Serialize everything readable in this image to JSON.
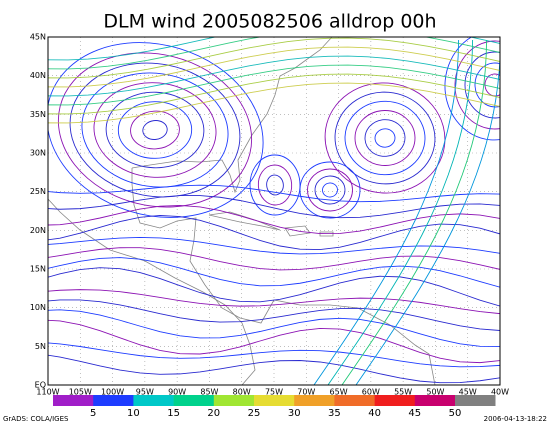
{
  "title": "DLM wind 2005082506 alldrop 00h",
  "map": {
    "lat_labels": [
      "45N",
      "40N",
      "35N",
      "30N",
      "25N",
      "20N",
      "15N",
      "10N",
      "5N",
      "EQ"
    ],
    "lon_labels": [
      "110W",
      "105W",
      "100W",
      "95W",
      "90W",
      "85W",
      "80W",
      "75W",
      "70W",
      "65W",
      "60W",
      "55W",
      "50W",
      "45W",
      "40W"
    ]
  },
  "colorbar": {
    "labels": [
      5,
      10,
      15,
      20,
      25,
      30,
      35,
      40,
      45,
      50
    ],
    "colors": [
      "#a01ec8",
      "#1e3cff",
      "#00c8c8",
      "#00d28c",
      "#a0e632",
      "#e6dc32",
      "#f0a028",
      "#f06c28",
      "#f01e1e",
      "#c8006e",
      "#808080"
    ]
  },
  "footer": {
    "left": "GrADS: COLA/IGES",
    "right": "2006-04-13-18:22"
  }
}
